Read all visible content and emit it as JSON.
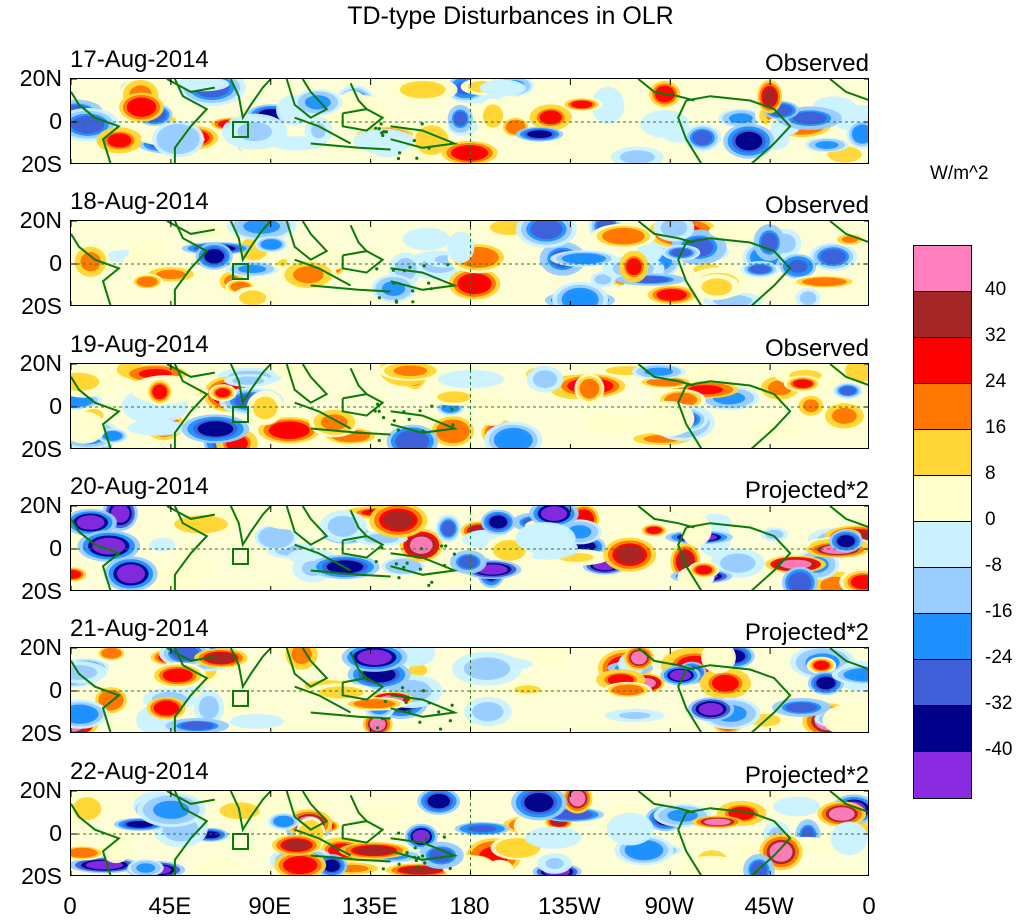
{
  "title": "TD-type Disturbances in OLR",
  "units": "W/m^2",
  "panels": [
    {
      "date": "17-Aug-2014",
      "kind": "Observed"
    },
    {
      "date": "18-Aug-2014",
      "kind": "Observed"
    },
    {
      "date": "19-Aug-2014",
      "kind": "Observed"
    },
    {
      "date": "20-Aug-2014",
      "kind": "Projected*2"
    },
    {
      "date": "21-Aug-2014",
      "kind": "Projected*2"
    },
    {
      "date": "22-Aug-2014",
      "kind": "Projected*2"
    }
  ],
  "lat_labels": [
    "20N",
    "0",
    "20S"
  ],
  "lon_labels": [
    "0",
    "45E",
    "90E",
    "135E",
    "180",
    "135W",
    "90W",
    "45W",
    "0"
  ],
  "colorbar": {
    "labels": [
      "40",
      "32",
      "24",
      "16",
      "8",
      "0",
      "-8",
      "-16",
      "-24",
      "-32",
      "-40"
    ],
    "colors": [
      "#ff7fbf",
      "#a52626",
      "#ff0000",
      "#ff7700",
      "#ffd633",
      "#ffffcc",
      "#ccf2ff",
      "#99ccff",
      "#1e90ff",
      "#3f5fd8",
      "#00008b",
      "#8a2be2"
    ]
  },
  "map_data": {
    "projection": "cylindrical equidistant",
    "lon_range": [
      0,
      360
    ],
    "lat_range": [
      -20,
      20
    ],
    "field": "OLR anomaly, TD-type filtered",
    "markers": [
      "dashed equator line",
      "dashed 180 meridian",
      "green box near 75E, equator"
    ]
  }
}
